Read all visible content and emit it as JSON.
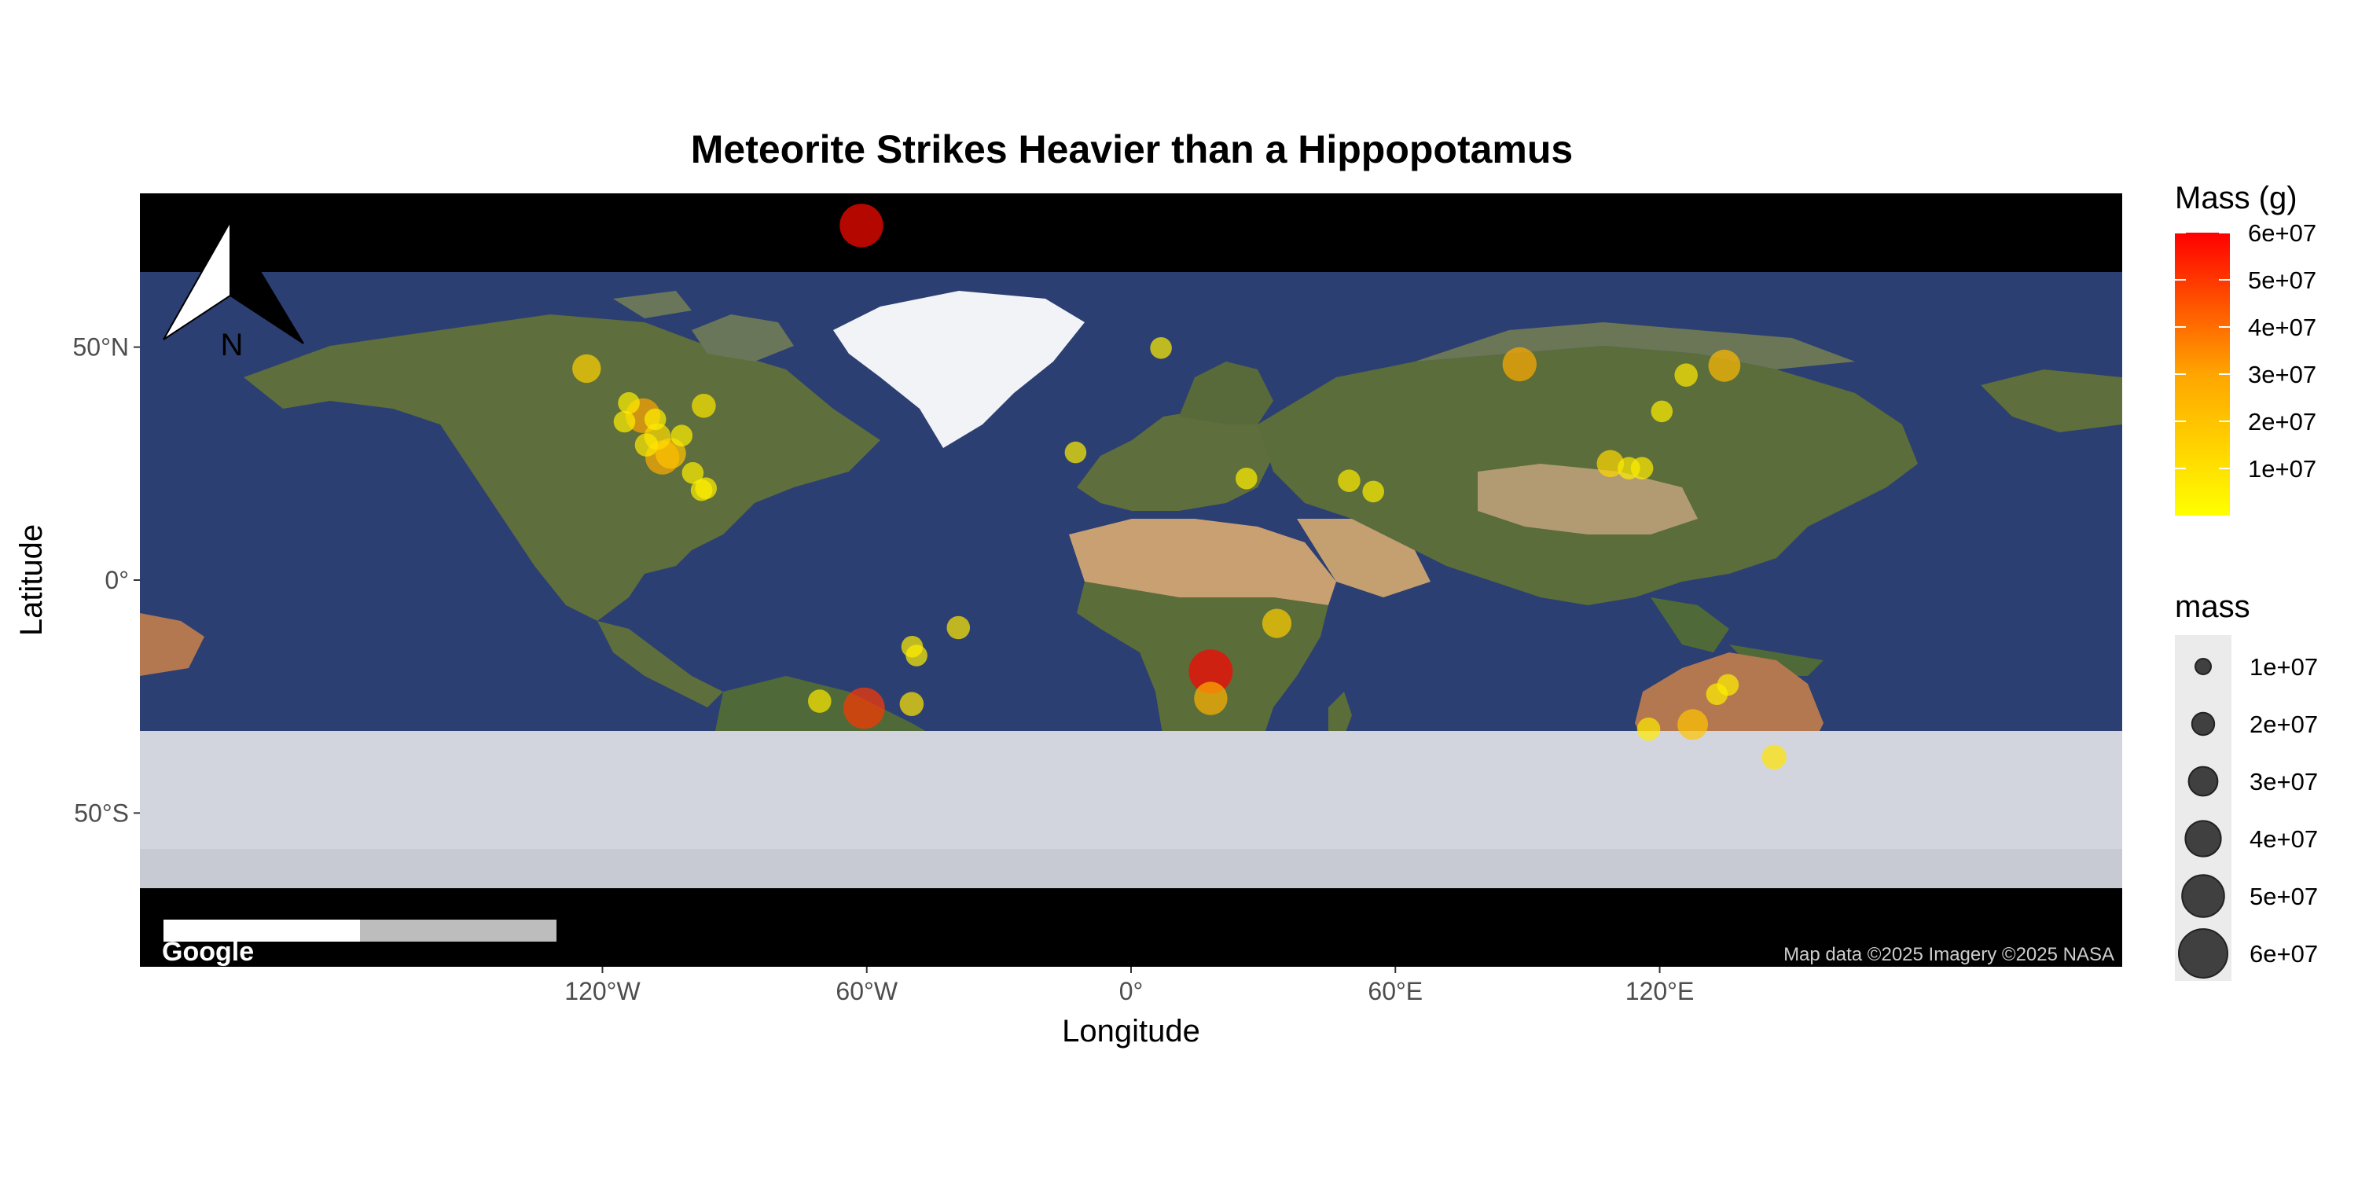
{
  "title": "Meteorite Strikes Heavier than a Hippopotamus",
  "x_axis": {
    "label": "Longitude",
    "ticks": [
      {
        "lon": -120,
        "label": "120°W"
      },
      {
        "lon": -60,
        "label": "60°W"
      },
      {
        "lon": 0,
        "label": "0°"
      },
      {
        "lon": 60,
        "label": "60°E"
      },
      {
        "lon": 120,
        "label": "120°E"
      }
    ]
  },
  "y_axis": {
    "label": "Latitude",
    "ticks": [
      {
        "lat": 50,
        "label": "50°N"
      },
      {
        "lat": 0,
        "label": "0°"
      },
      {
        "lat": -50,
        "label": "50°S"
      }
    ]
  },
  "north_arrow": {
    "label": "N"
  },
  "basemap": {
    "logo": "Google",
    "attribution": "Map data ©2025 Imagery ©2025 NASA"
  },
  "legend_color": {
    "title": "Mass (g)",
    "labels": [
      "6e+07",
      "5e+07",
      "4e+07",
      "3e+07",
      "2e+07",
      "1e+07"
    ],
    "low_color": "#ffff00",
    "high_color": "#ff0000"
  },
  "legend_size": {
    "title": "mass",
    "labels": [
      "1e+07",
      "2e+07",
      "3e+07",
      "4e+07",
      "5e+07",
      "6e+07"
    ]
  },
  "colors": {
    "ocean": "#2c3f72",
    "land": "#5e6e3c",
    "desert": "#c9a071",
    "ice": "#d3d5de",
    "frame": "#000000"
  },
  "chart_data": {
    "type": "scatter",
    "x_range": [
      -225,
      225
    ],
    "y_range": [
      -83,
      83
    ],
    "points": [
      {
        "lon": -61.2,
        "lat": 76.1,
        "mass": 58200000
      },
      {
        "lon": 18.1,
        "lat": -19.6,
        "mass": 60000000
      },
      {
        "lon": -60.6,
        "lat": -27.5,
        "mass": 50000000
      },
      {
        "lon": 18.1,
        "lat": -25.4,
        "mass": 26000000
      },
      {
        "lon": 33.1,
        "lat": -9.3,
        "mass": 17000000
      },
      {
        "lon": 88.2,
        "lat": 46.3,
        "mass": 28000000
      },
      {
        "lon": 134.7,
        "lat": 46.0,
        "mass": 23000000
      },
      {
        "lon": -123.6,
        "lat": 45.4,
        "mass": 15500000
      },
      {
        "lon": -110.8,
        "lat": 35.3,
        "mass": 30000000
      },
      {
        "lon": -106.4,
        "lat": 26.3,
        "mass": 28000000
      },
      {
        "lon": -104.5,
        "lat": 27.2,
        "mass": 20000000
      },
      {
        "lon": -107.5,
        "lat": 30.8,
        "mass": 12000000
      },
      {
        "lon": -97.0,
        "lat": 37.4,
        "mass": 8000000
      },
      {
        "lon": -110.0,
        "lat": 29.0,
        "mass": 7000000
      },
      {
        "lon": -114.0,
        "lat": 38.0,
        "mass": 5000000
      },
      {
        "lon": -115.0,
        "lat": 34.0,
        "mass": 5000000
      },
      {
        "lon": -108.0,
        "lat": 34.5,
        "mass": 5000000
      },
      {
        "lon": -102.0,
        "lat": 31.0,
        "mass": 5000000
      },
      {
        "lon": -99.5,
        "lat": 23.0,
        "mass": 5000000
      },
      {
        "lon": -97.5,
        "lat": 19.3,
        "mass": 5000000
      },
      {
        "lon": -96.5,
        "lat": 19.7,
        "mass": 5000000
      },
      {
        "lon": -12.6,
        "lat": 27.4,
        "mass": 5000000
      },
      {
        "lon": 6.8,
        "lat": 49.8,
        "mass": 5000000
      },
      {
        "lon": 26.2,
        "lat": 21.8,
        "mass": 5000000
      },
      {
        "lon": 49.5,
        "lat": 21.3,
        "mass": 6000000
      },
      {
        "lon": 55.0,
        "lat": 19.0,
        "mass": 5000000
      },
      {
        "lon": 108.8,
        "lat": 25.0,
        "mass": 13000000
      },
      {
        "lon": 113.0,
        "lat": 24.0,
        "mass": 6000000
      },
      {
        "lon": 116.0,
        "lat": 24.0,
        "mass": 6000000
      },
      {
        "lon": 120.5,
        "lat": 36.2,
        "mass": 5000000
      },
      {
        "lon": 126.0,
        "lat": 44.0,
        "mass": 7000000
      },
      {
        "lon": 127.5,
        "lat": -31.0,
        "mass": 20000000
      },
      {
        "lon": 117.5,
        "lat": -32.0,
        "mass": 7000000
      },
      {
        "lon": 133.0,
        "lat": -24.5,
        "mass": 5000000
      },
      {
        "lon": 135.5,
        "lat": -22.5,
        "mass": 5000000
      },
      {
        "lon": 146.0,
        "lat": -38.0,
        "mass": 9000000
      },
      {
        "lon": -70.7,
        "lat": -26.0,
        "mass": 7000000
      },
      {
        "lon": -49.8,
        "lat": -26.6,
        "mass": 8000000
      },
      {
        "lon": -49.7,
        "lat": -14.3,
        "mass": 5000000
      },
      {
        "lon": -48.7,
        "lat": -16.2,
        "mass": 5000000
      },
      {
        "lon": -39.2,
        "lat": -10.2,
        "mass": 7000000
      }
    ]
  }
}
